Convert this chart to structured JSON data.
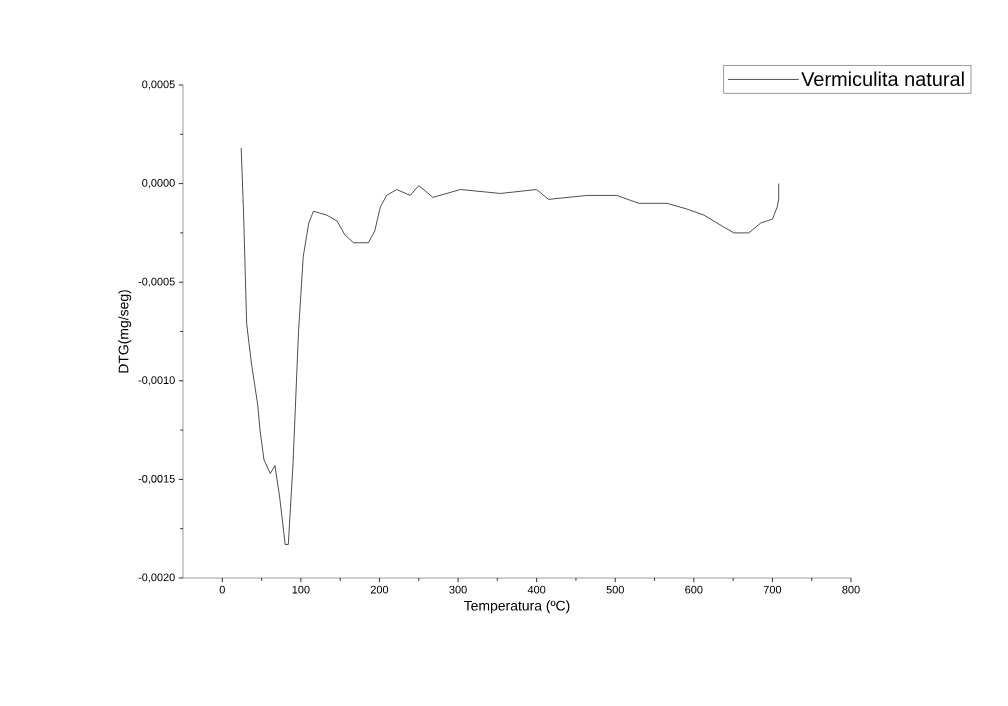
{
  "chart_data": {
    "type": "line",
    "xlabel": "Temperatura (ºC)",
    "ylabel": "DTG(mg/seg)",
    "xlim": [
      -50,
      800
    ],
    "ylim": [
      -0.002,
      0.0005
    ],
    "xticks": [
      0,
      100,
      200,
      300,
      400,
      500,
      600,
      700,
      800
    ],
    "yticks": [
      {
        "value": -0.002,
        "label": "-0,0020"
      },
      {
        "value": -0.0015,
        "label": "-0,0015"
      },
      {
        "value": -0.001,
        "label": "-0,0010"
      },
      {
        "value": -0.0005,
        "label": "-0,0005"
      },
      {
        "value": 0,
        "label": "0,0000"
      },
      {
        "value": 0.0005,
        "label": "0,0005"
      }
    ],
    "legend": "top right",
    "grid": false,
    "marker": "none",
    "line_style": "solid",
    "series": [
      {
        "name": "Vermiculita natural",
        "color": "#000000",
        "x": [
          24,
          27,
          31,
          37,
          45,
          48,
          53,
          61,
          67,
          73,
          80,
          84,
          90,
          97,
          103,
          110,
          116,
          133,
          146,
          156,
          167,
          186,
          194,
          201,
          209,
          222,
          239,
          250,
          268,
          303,
          354,
          400,
          415,
          464,
          502,
          530,
          566,
          592,
          613,
          638,
          651,
          670,
          685,
          700,
          706,
          708,
          708
        ],
        "values": [
          0.00018,
          -0.00014,
          -0.00071,
          -0.00091,
          -0.00112,
          -0.00125,
          -0.0014,
          -0.00147,
          -0.00143,
          -0.00159,
          -0.00183,
          -0.00183,
          -0.00142,
          -0.00075,
          -0.00037,
          -0.0002,
          -0.00014,
          -0.00016,
          -0.00019,
          -0.00026,
          -0.0003,
          -0.0003,
          -0.00024,
          -0.00012,
          -6e-05,
          -3e-05,
          -6e-05,
          -1e-05,
          -7e-05,
          -3e-05,
          -5e-05,
          -3e-05,
          -8e-05,
          -6e-05,
          -6e-05,
          -0.0001,
          -0.0001,
          -0.00013,
          -0.00016,
          -0.00022,
          -0.00025,
          -0.00025,
          -0.0002,
          -0.00018,
          -0.00012,
          -8e-05,
          0.0
        ]
      }
    ]
  }
}
